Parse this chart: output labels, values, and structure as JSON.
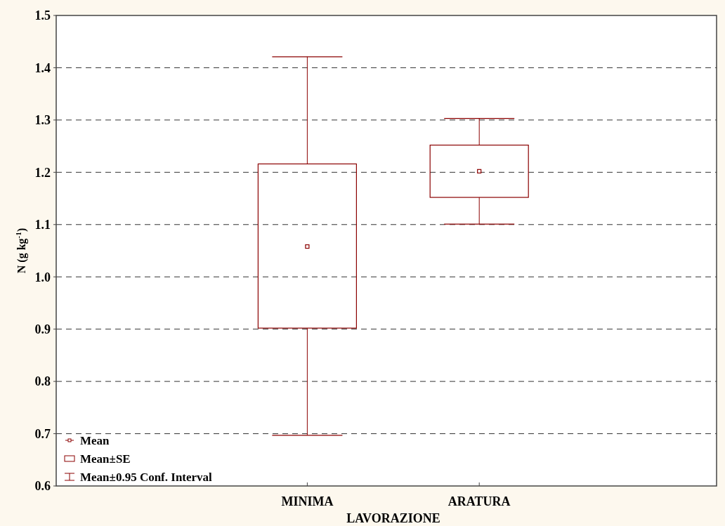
{
  "chart_data": {
    "type": "box",
    "xlabel": "LAVORAZIONE",
    "ylabel": "N (g kg$^{-1}$)",
    "categories": [
      "MINIMA",
      "ARATURA"
    ],
    "boxes": [
      {
        "low": 0.697,
        "q1": 0.902,
        "median": 1.058,
        "q3": 1.216,
        "high": 1.421
      },
      {
        "low": 1.101,
        "q1": 1.152,
        "median": 1.202,
        "q3": 1.252,
        "high": 1.303
      }
    ],
    "color": "#8b0000",
    "ylim": [
      0.6,
      1.5
    ],
    "yticks": [
      0.6,
      0.7,
      0.8,
      0.9,
      {
        "value": 1,
        "label": "1.0"
      },
      1.1,
      1.2,
      1.3,
      1.4,
      1.5
    ],
    "grid": "y",
    "annotations": [
      "Mean",
      "Mean±SE",
      "Mean±0.95 Conf. Interval"
    ]
  }
}
